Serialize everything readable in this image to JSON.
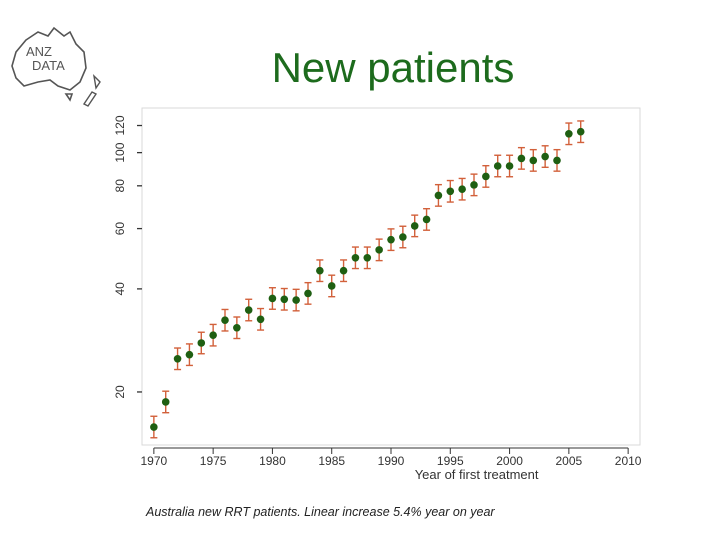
{
  "header": {
    "logo_text_line1": "ANZ",
    "logo_text_line2": "DATA",
    "title": "New patients"
  },
  "caption": "Australia new RRT patients. Linear increase 5.4% year on year",
  "colors": {
    "title": "#1d6b1d",
    "points": "#1f5f12",
    "error_bars": "#d2603a",
    "logo": "#555555"
  },
  "chart_data": {
    "type": "scatter",
    "title": "New patients",
    "xlabel": "Year of first treatment",
    "ylabel": "",
    "y_scale": "log",
    "xlim": [
      1969,
      2011
    ],
    "ylim": [
      14,
      135
    ],
    "x_ticks": [
      1970,
      1975,
      1980,
      1985,
      1990,
      1995,
      2000,
      2005,
      2010
    ],
    "y_ticks": [
      20,
      40,
      60,
      80,
      100,
      120
    ],
    "grid": false,
    "error_bars": true,
    "points": [
      {
        "x": 1970,
        "y": 15.8
      },
      {
        "x": 1971,
        "y": 18.7
      },
      {
        "x": 1972,
        "y": 25.0
      },
      {
        "x": 1973,
        "y": 25.7
      },
      {
        "x": 1974,
        "y": 27.8
      },
      {
        "x": 1975,
        "y": 29.3
      },
      {
        "x": 1976,
        "y": 32.4
      },
      {
        "x": 1977,
        "y": 30.8
      },
      {
        "x": 1978,
        "y": 34.7
      },
      {
        "x": 1979,
        "y": 32.6
      },
      {
        "x": 1980,
        "y": 37.5
      },
      {
        "x": 1981,
        "y": 37.3
      },
      {
        "x": 1982,
        "y": 37.1
      },
      {
        "x": 1983,
        "y": 38.8
      },
      {
        "x": 1984,
        "y": 45.2
      },
      {
        "x": 1985,
        "y": 40.8
      },
      {
        "x": 1986,
        "y": 45.2
      },
      {
        "x": 1987,
        "y": 49.3
      },
      {
        "x": 1988,
        "y": 49.3
      },
      {
        "x": 1989,
        "y": 52.0
      },
      {
        "x": 1990,
        "y": 55.7
      },
      {
        "x": 1991,
        "y": 56.7
      },
      {
        "x": 1992,
        "y": 61.1
      },
      {
        "x": 1993,
        "y": 63.8
      },
      {
        "x": 1994,
        "y": 75.0
      },
      {
        "x": 1995,
        "y": 77.1
      },
      {
        "x": 1996,
        "y": 78.2
      },
      {
        "x": 1997,
        "y": 80.5
      },
      {
        "x": 1998,
        "y": 85.2
      },
      {
        "x": 1999,
        "y": 91.4
      },
      {
        "x": 2000,
        "y": 91.4
      },
      {
        "x": 2001,
        "y": 96.2
      },
      {
        "x": 2002,
        "y": 94.9
      },
      {
        "x": 2003,
        "y": 97.4
      },
      {
        "x": 2004,
        "y": 94.9
      },
      {
        "x": 2005,
        "y": 113.5
      },
      {
        "x": 2006,
        "y": 115.1
      }
    ]
  }
}
